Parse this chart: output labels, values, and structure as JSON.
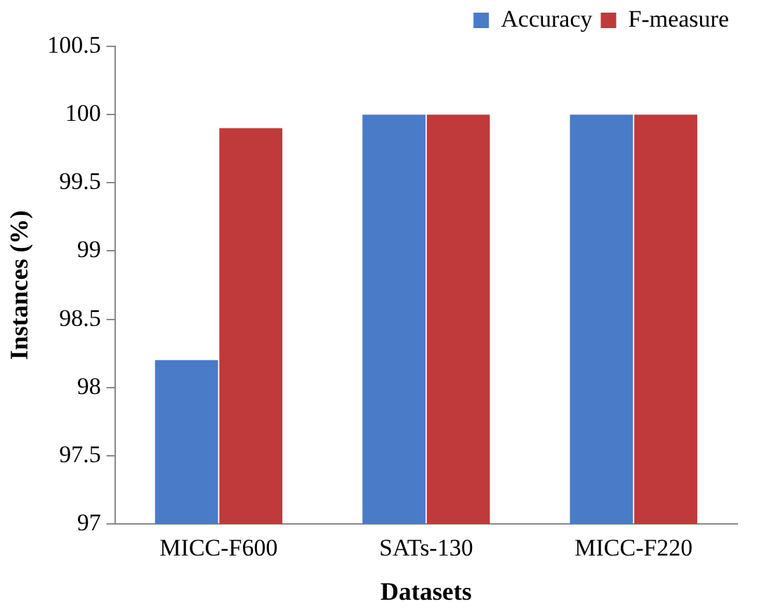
{
  "chart_data": {
    "type": "bar",
    "xlabel": "Datasets",
    "ylabel": "Instances (%)",
    "categories": [
      "MICC-F600",
      "SATs-130",
      "MICC-F220"
    ],
    "series": [
      {
        "name": "Accuracy",
        "color": "#4a7bc8",
        "values": [
          98.2,
          100,
          100
        ]
      },
      {
        "name": "F-measure",
        "color": "#c0393b",
        "values": [
          99.9,
          100,
          100
        ]
      }
    ],
    "ylim": [
      97,
      100.5
    ],
    "yticks": [
      97,
      97.5,
      98,
      98.5,
      99,
      99.5,
      100,
      100.5
    ],
    "grid": false,
    "legend": "top right"
  }
}
